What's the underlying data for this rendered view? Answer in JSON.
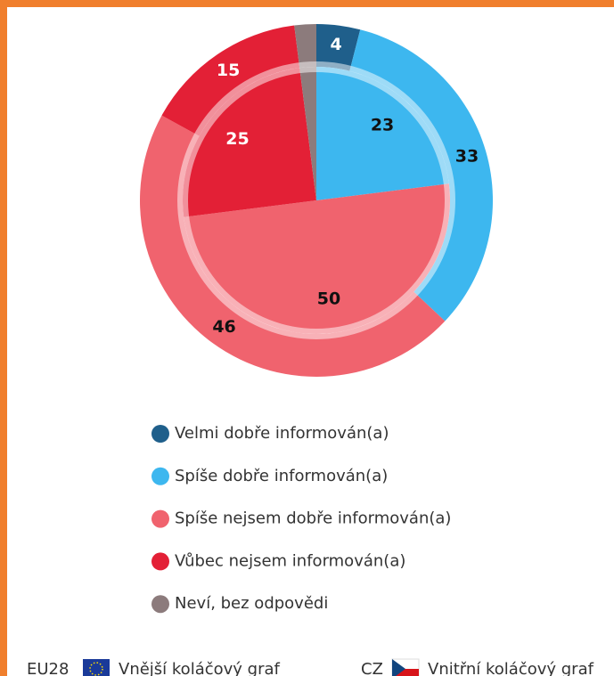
{
  "chart_data": {
    "type": "pie",
    "categories": [
      "Velmi dobře informován(a)",
      "Spíše dobře informován(a)",
      "Spíše nejsem dobře informován(a)",
      "Vůbec nejsem informován(a)",
      "Neví, bez odpovědi"
    ],
    "colors": [
      "#1f5f8b",
      "#3db7ef",
      "#f0636e",
      "#e32036",
      "#8c7b7c"
    ],
    "series": [
      {
        "name": "EU28",
        "label": "Vnější koláčový graf",
        "values": [
          4,
          33,
          46,
          15,
          2
        ]
      },
      {
        "name": "CZ",
        "label": "Vnitřní koláčový graf",
        "values": [
          0,
          23,
          50,
          25,
          2
        ]
      }
    ]
  }
}
